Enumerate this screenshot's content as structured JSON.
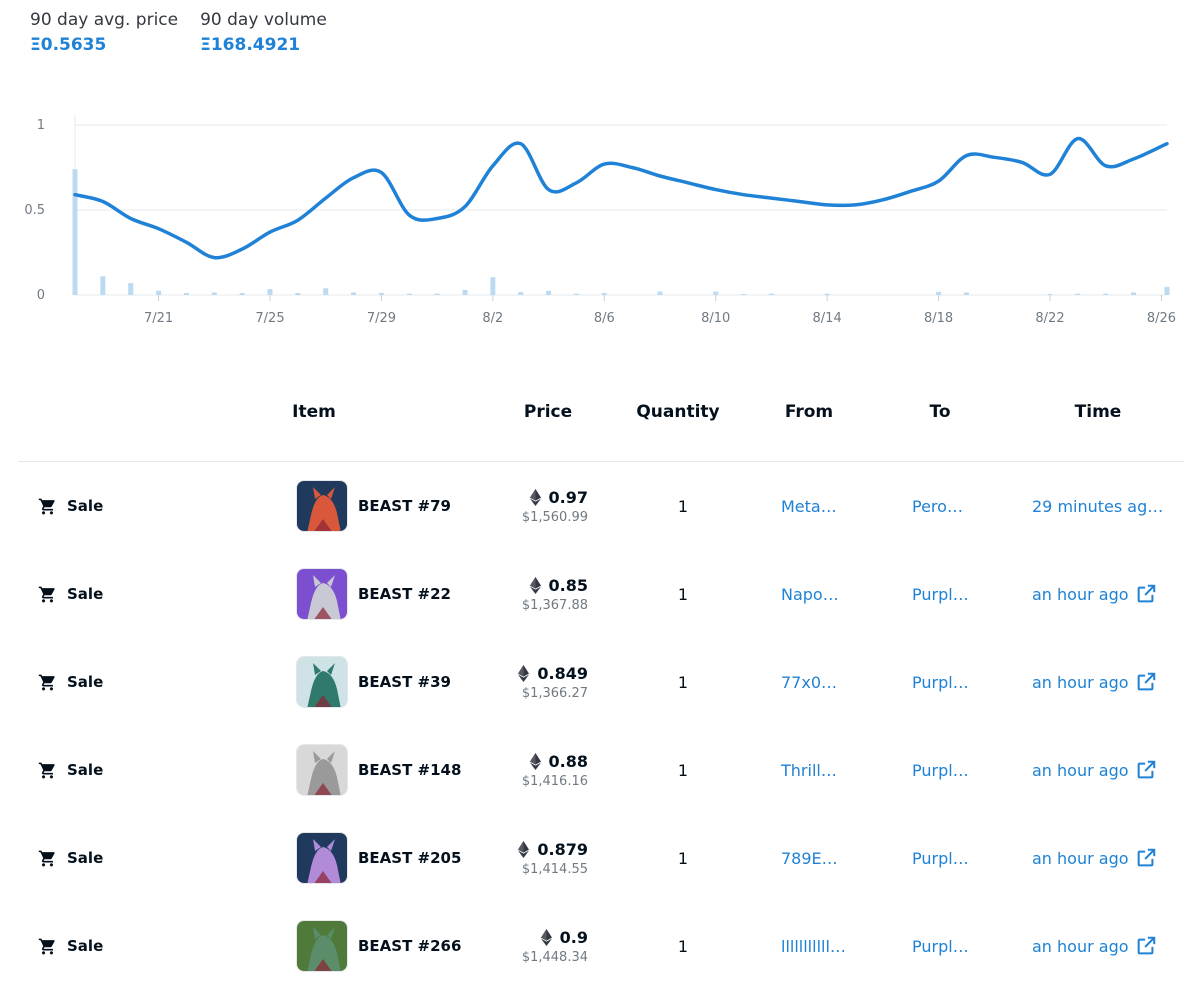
{
  "stats": {
    "avg_price_label": "90 day avg. price",
    "avg_price_value": "Ξ0.5635",
    "volume_label": "90 day volume",
    "volume_value": "Ξ168.4921"
  },
  "colors": {
    "accent": "#1f82d6",
    "volume_bar": "#bcdaf2",
    "grid": "#e5e8eb"
  },
  "chart_data": {
    "type": "line",
    "y_ticks": [
      "1",
      "0.5",
      "0"
    ],
    "ylim": [
      0,
      1
    ],
    "x_ticks": [
      "7/21",
      "7/25",
      "7/29",
      "8/2",
      "8/6",
      "8/10",
      "8/14",
      "8/18",
      "8/22",
      "8/26"
    ],
    "x_tick_days": [
      3,
      7,
      11,
      15,
      19,
      23,
      27,
      31,
      35,
      39
    ],
    "xlim_days": [
      0,
      39.2
    ],
    "price": {
      "days": [
        0,
        1,
        2,
        3,
        4,
        5,
        6,
        7,
        8,
        9,
        10,
        11,
        12,
        13,
        14,
        15,
        16,
        17,
        18,
        19,
        20,
        21,
        22,
        23,
        24,
        25,
        26,
        27,
        28,
        29,
        30,
        31,
        32,
        33,
        34,
        35,
        36,
        37,
        38,
        39.2
      ],
      "values": [
        0.59,
        0.55,
        0.45,
        0.39,
        0.31,
        0.22,
        0.27,
        0.37,
        0.44,
        0.57,
        0.69,
        0.72,
        0.47,
        0.45,
        0.52,
        0.76,
        0.89,
        0.62,
        0.66,
        0.77,
        0.75,
        0.7,
        0.66,
        0.62,
        0.59,
        0.57,
        0.55,
        0.53,
        0.53,
        0.56,
        0.61,
        0.67,
        0.82,
        0.81,
        0.78,
        0.71,
        0.92,
        0.76,
        0.8,
        0.89
      ]
    },
    "volume": {
      "days": [
        0,
        1,
        2,
        3,
        4,
        5,
        6,
        7,
        8,
        9,
        10,
        11,
        12,
        13,
        14,
        15,
        16,
        17,
        18,
        19,
        21,
        23,
        24,
        25,
        27,
        31,
        32,
        35,
        36,
        37,
        38,
        39.2
      ],
      "values": [
        0.74,
        0.11,
        0.07,
        0.025,
        0.012,
        0.015,
        0.012,
        0.035,
        0.012,
        0.04,
        0.015,
        0.012,
        0.008,
        0.008,
        0.03,
        0.105,
        0.018,
        0.025,
        0.008,
        0.012,
        0.02,
        0.02,
        0.006,
        0.008,
        0.008,
        0.018,
        0.015,
        0.006,
        0.008,
        0.008,
        0.015,
        0.048
      ]
    }
  },
  "table": {
    "headers": {
      "item": "Item",
      "price": "Price",
      "quantity": "Quantity",
      "from": "From",
      "to": "To",
      "time": "Time"
    },
    "rows": [
      {
        "event": "Sale",
        "item": "BEAST #79",
        "price_eth": "0.97",
        "price_usd": "$1,560.99",
        "quantity": "1",
        "from": "Meta…",
        "to": "Pero…",
        "time": "29 minutes ag…",
        "thumb_bg": "#1f3a5c",
        "beast_color": "#d9583b",
        "has_link_icon": false
      },
      {
        "event": "Sale",
        "item": "BEAST #22",
        "price_eth": "0.85",
        "price_usd": "$1,367.88",
        "quantity": "1",
        "from": "Napo…",
        "to": "Purpl…",
        "time": "an hour ago",
        "thumb_bg": "#7b4fd0",
        "beast_color": "#c9c9d6",
        "has_link_icon": true
      },
      {
        "event": "Sale",
        "item": "BEAST #39",
        "price_eth": "0.849",
        "price_usd": "$1,366.27",
        "quantity": "1",
        "from": "77x0…",
        "to": "Purpl…",
        "time": "an hour ago",
        "thumb_bg": "#cfe3e6",
        "beast_color": "#2f7a6b",
        "has_link_icon": true
      },
      {
        "event": "Sale",
        "item": "BEAST #148",
        "price_eth": "0.88",
        "price_usd": "$1,416.16",
        "quantity": "1",
        "from": "Thrill…",
        "to": "Purpl…",
        "time": "an hour ago",
        "thumb_bg": "#d8d8d8",
        "beast_color": "#9a9a9a",
        "has_link_icon": true
      },
      {
        "event": "Sale",
        "item": "BEAST #205",
        "price_eth": "0.879",
        "price_usd": "$1,414.55",
        "quantity": "1",
        "from": "789E…",
        "to": "Purpl…",
        "time": "an hour ago",
        "thumb_bg": "#1f3a5c",
        "beast_color": "#b18ad8",
        "has_link_icon": true
      },
      {
        "event": "Sale",
        "item": "BEAST #266",
        "price_eth": "0.9",
        "price_usd": "$1,448.34",
        "quantity": "1",
        "from": "lllllllllll…",
        "to": "Purpl…",
        "time": "an hour ago",
        "thumb_bg": "#4f7a3a",
        "beast_color": "#5c8d6a",
        "has_link_icon": true
      }
    ]
  }
}
